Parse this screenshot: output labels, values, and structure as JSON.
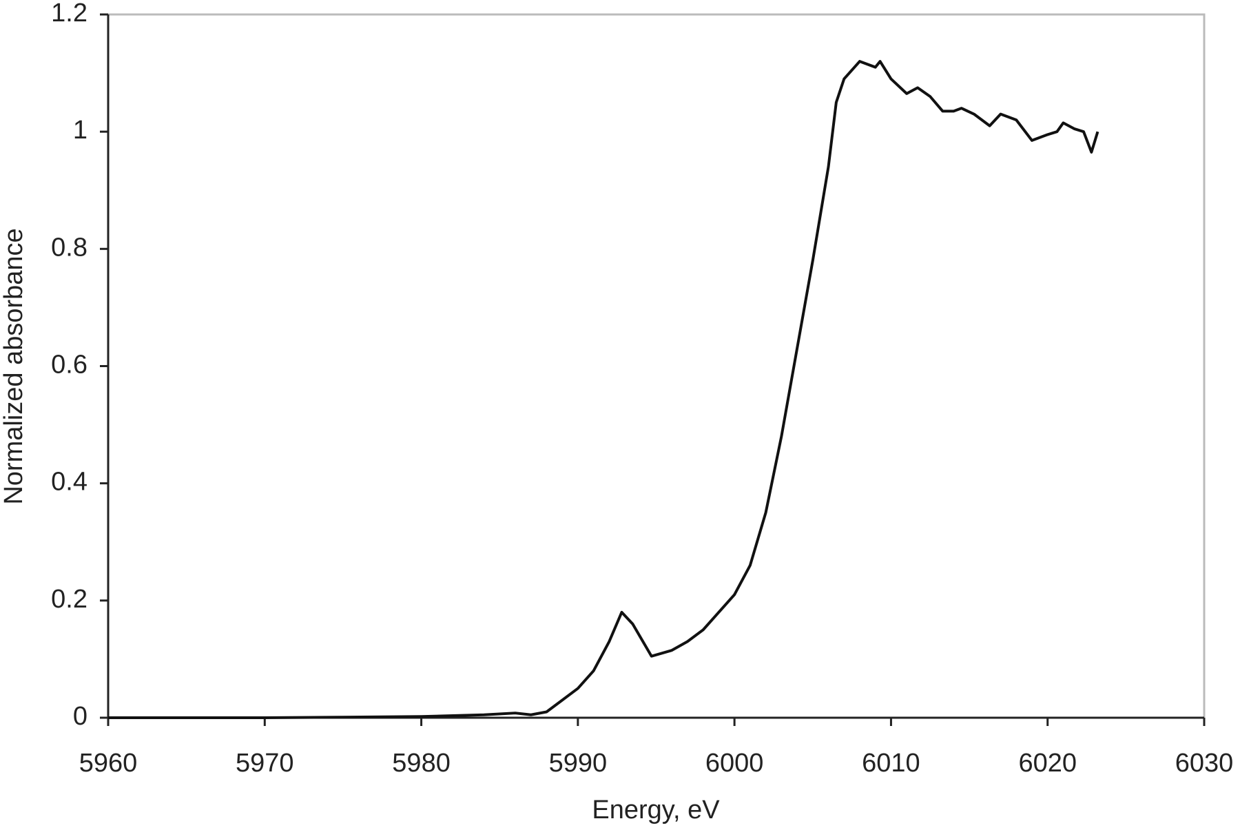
{
  "chart_data": {
    "type": "line",
    "xlabel": "Energy, eV",
    "ylabel": "Normalized absorbance",
    "xlim": [
      5960,
      6030
    ],
    "xticks": [
      5960,
      5970,
      5980,
      5990,
      6000,
      6010,
      6020,
      6030
    ],
    "ylim": [
      0,
      1.2
    ],
    "yticks": [
      0,
      0.2,
      0.4,
      0.6,
      0.8,
      1,
      1.2
    ],
    "grid": false,
    "series": [
      {
        "color": "#111111",
        "x": [
          5960,
          5970,
          5980,
          5984,
          5986,
          5987,
          5988,
          5989,
          5990,
          5991,
          5992,
          5992.8,
          5993.5,
          5994.7,
          5996,
          5997,
          5998,
          5999,
          6000,
          6001,
          6002,
          6003,
          6004,
          6005,
          6006,
          6006.5,
          6007,
          6008,
          6009,
          6009.3,
          6010,
          6011,
          6011.7,
          6012.5,
          6013.3,
          6014,
          6014.5,
          6015.3,
          6016.3,
          6017,
          6018,
          6019,
          6020,
          6020.6,
          6021,
          6021.7,
          6022.3,
          6022.8,
          6023.2
        ],
        "values": [
          0,
          0,
          0.002,
          0.005,
          0.008,
          0.005,
          0.01,
          0.03,
          0.05,
          0.08,
          0.13,
          0.18,
          0.16,
          0.105,
          0.115,
          0.13,
          0.15,
          0.18,
          0.21,
          0.26,
          0.35,
          0.48,
          0.63,
          0.78,
          0.94,
          1.05,
          1.09,
          1.12,
          1.11,
          1.12,
          1.09,
          1.065,
          1.075,
          1.06,
          1.035,
          1.035,
          1.04,
          1.03,
          1.01,
          1.03,
          1.02,
          0.985,
          0.995,
          1.0,
          1.015,
          1.005,
          1.0,
          0.965,
          1.0
        ]
      }
    ]
  }
}
